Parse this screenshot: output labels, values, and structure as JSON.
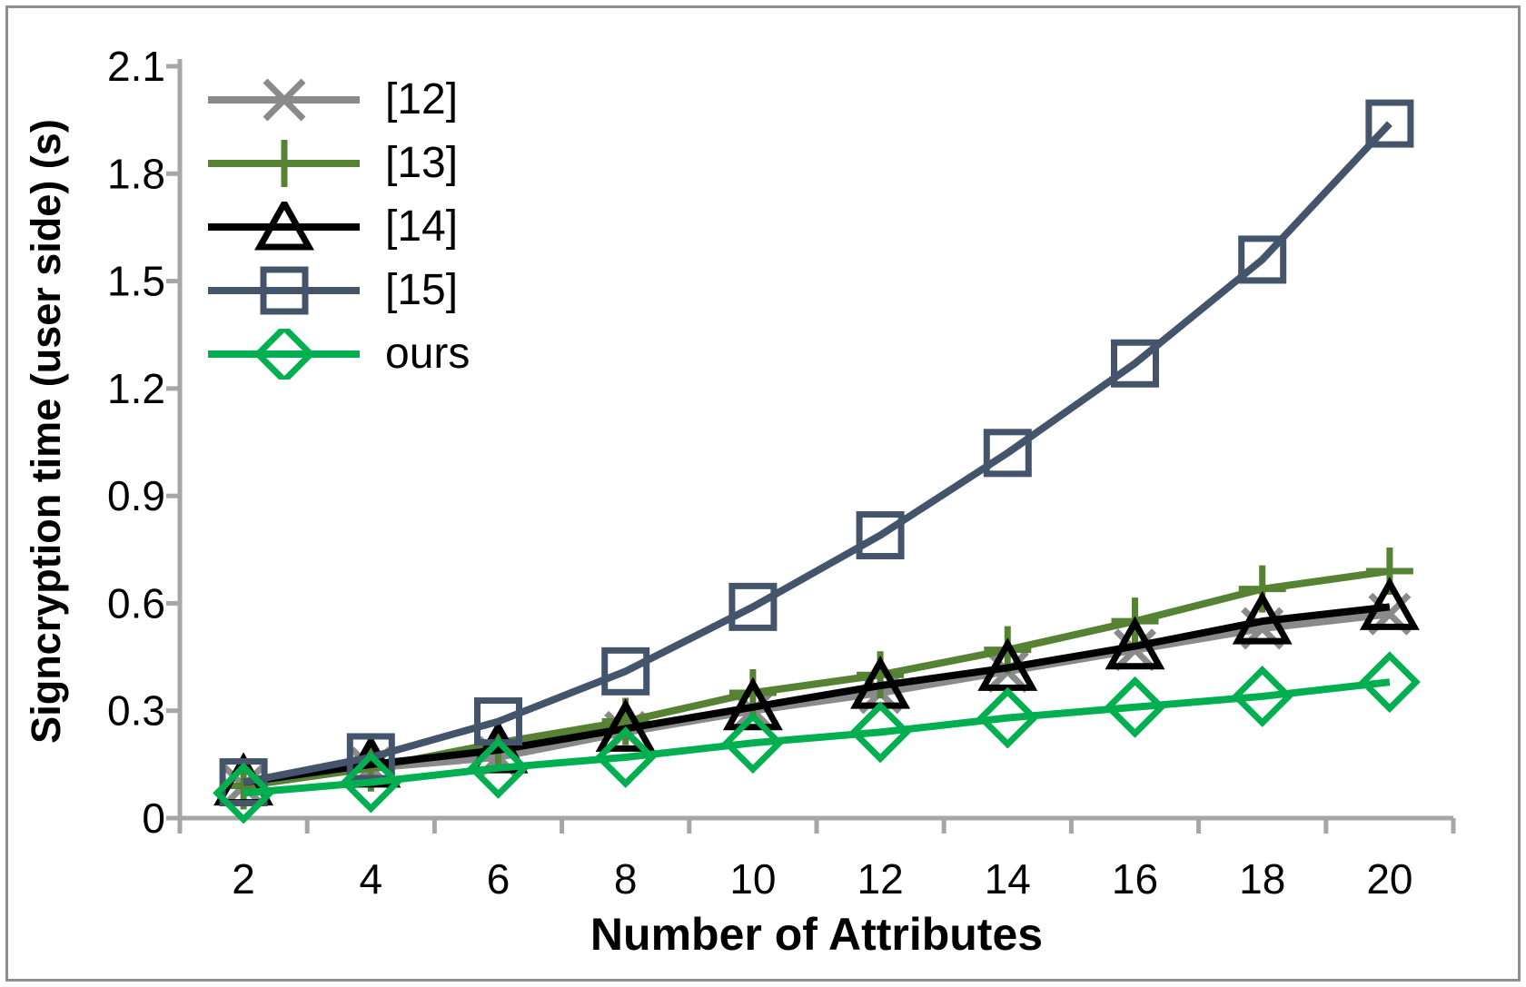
{
  "figure": {
    "background": "#FFFFFF",
    "border_color": "#8E8E8E"
  },
  "chart_data": {
    "type": "line",
    "title": "",
    "xlabel": "Number of Attributes",
    "ylabel": "Signcryption time (user side) (s)",
    "categories": [
      2,
      4,
      6,
      8,
      10,
      12,
      14,
      16,
      18,
      20
    ],
    "x_tick_labels": [
      "2",
      "4",
      "6",
      "8",
      "10",
      "12",
      "14",
      "16",
      "18",
      "20"
    ],
    "y_ticks": [
      0,
      0.3,
      0.6,
      0.9,
      1.2,
      1.5,
      1.8,
      2.1
    ],
    "y_tick_labels": [
      "0",
      "0.3",
      "0.6",
      "0.9",
      "1.2",
      "1.5",
      "1.8",
      "2.1"
    ],
    "ylim": [
      0,
      2.1
    ],
    "grid": false,
    "legend_position": "top-left-inside",
    "axis_color": "#A6A6A6",
    "text_color": "#000000",
    "series": [
      {
        "name": "[12]",
        "color": "#8A8A8A",
        "marker": "x",
        "values": [
          0.09,
          0.14,
          0.17,
          0.24,
          0.3,
          0.35,
          0.41,
          0.47,
          0.53,
          0.57
        ]
      },
      {
        "name": "[13]",
        "color": "#568233",
        "marker": "plus",
        "values": [
          0.09,
          0.14,
          0.21,
          0.27,
          0.35,
          0.4,
          0.47,
          0.55,
          0.64,
          0.69
        ]
      },
      {
        "name": "[14]",
        "color": "#000000",
        "marker": "triangle",
        "values": [
          0.1,
          0.15,
          0.19,
          0.25,
          0.31,
          0.37,
          0.42,
          0.48,
          0.55,
          0.59
        ]
      },
      {
        "name": "[15]",
        "color": "#44546A",
        "marker": "square",
        "values": [
          0.1,
          0.17,
          0.27,
          0.41,
          0.59,
          0.79,
          1.02,
          1.27,
          1.56,
          1.94
        ]
      },
      {
        "name": "ours",
        "color": "#00AF50",
        "marker": "diamond",
        "values": [
          0.07,
          0.1,
          0.14,
          0.17,
          0.21,
          0.24,
          0.28,
          0.31,
          0.34,
          0.38
        ]
      }
    ]
  }
}
